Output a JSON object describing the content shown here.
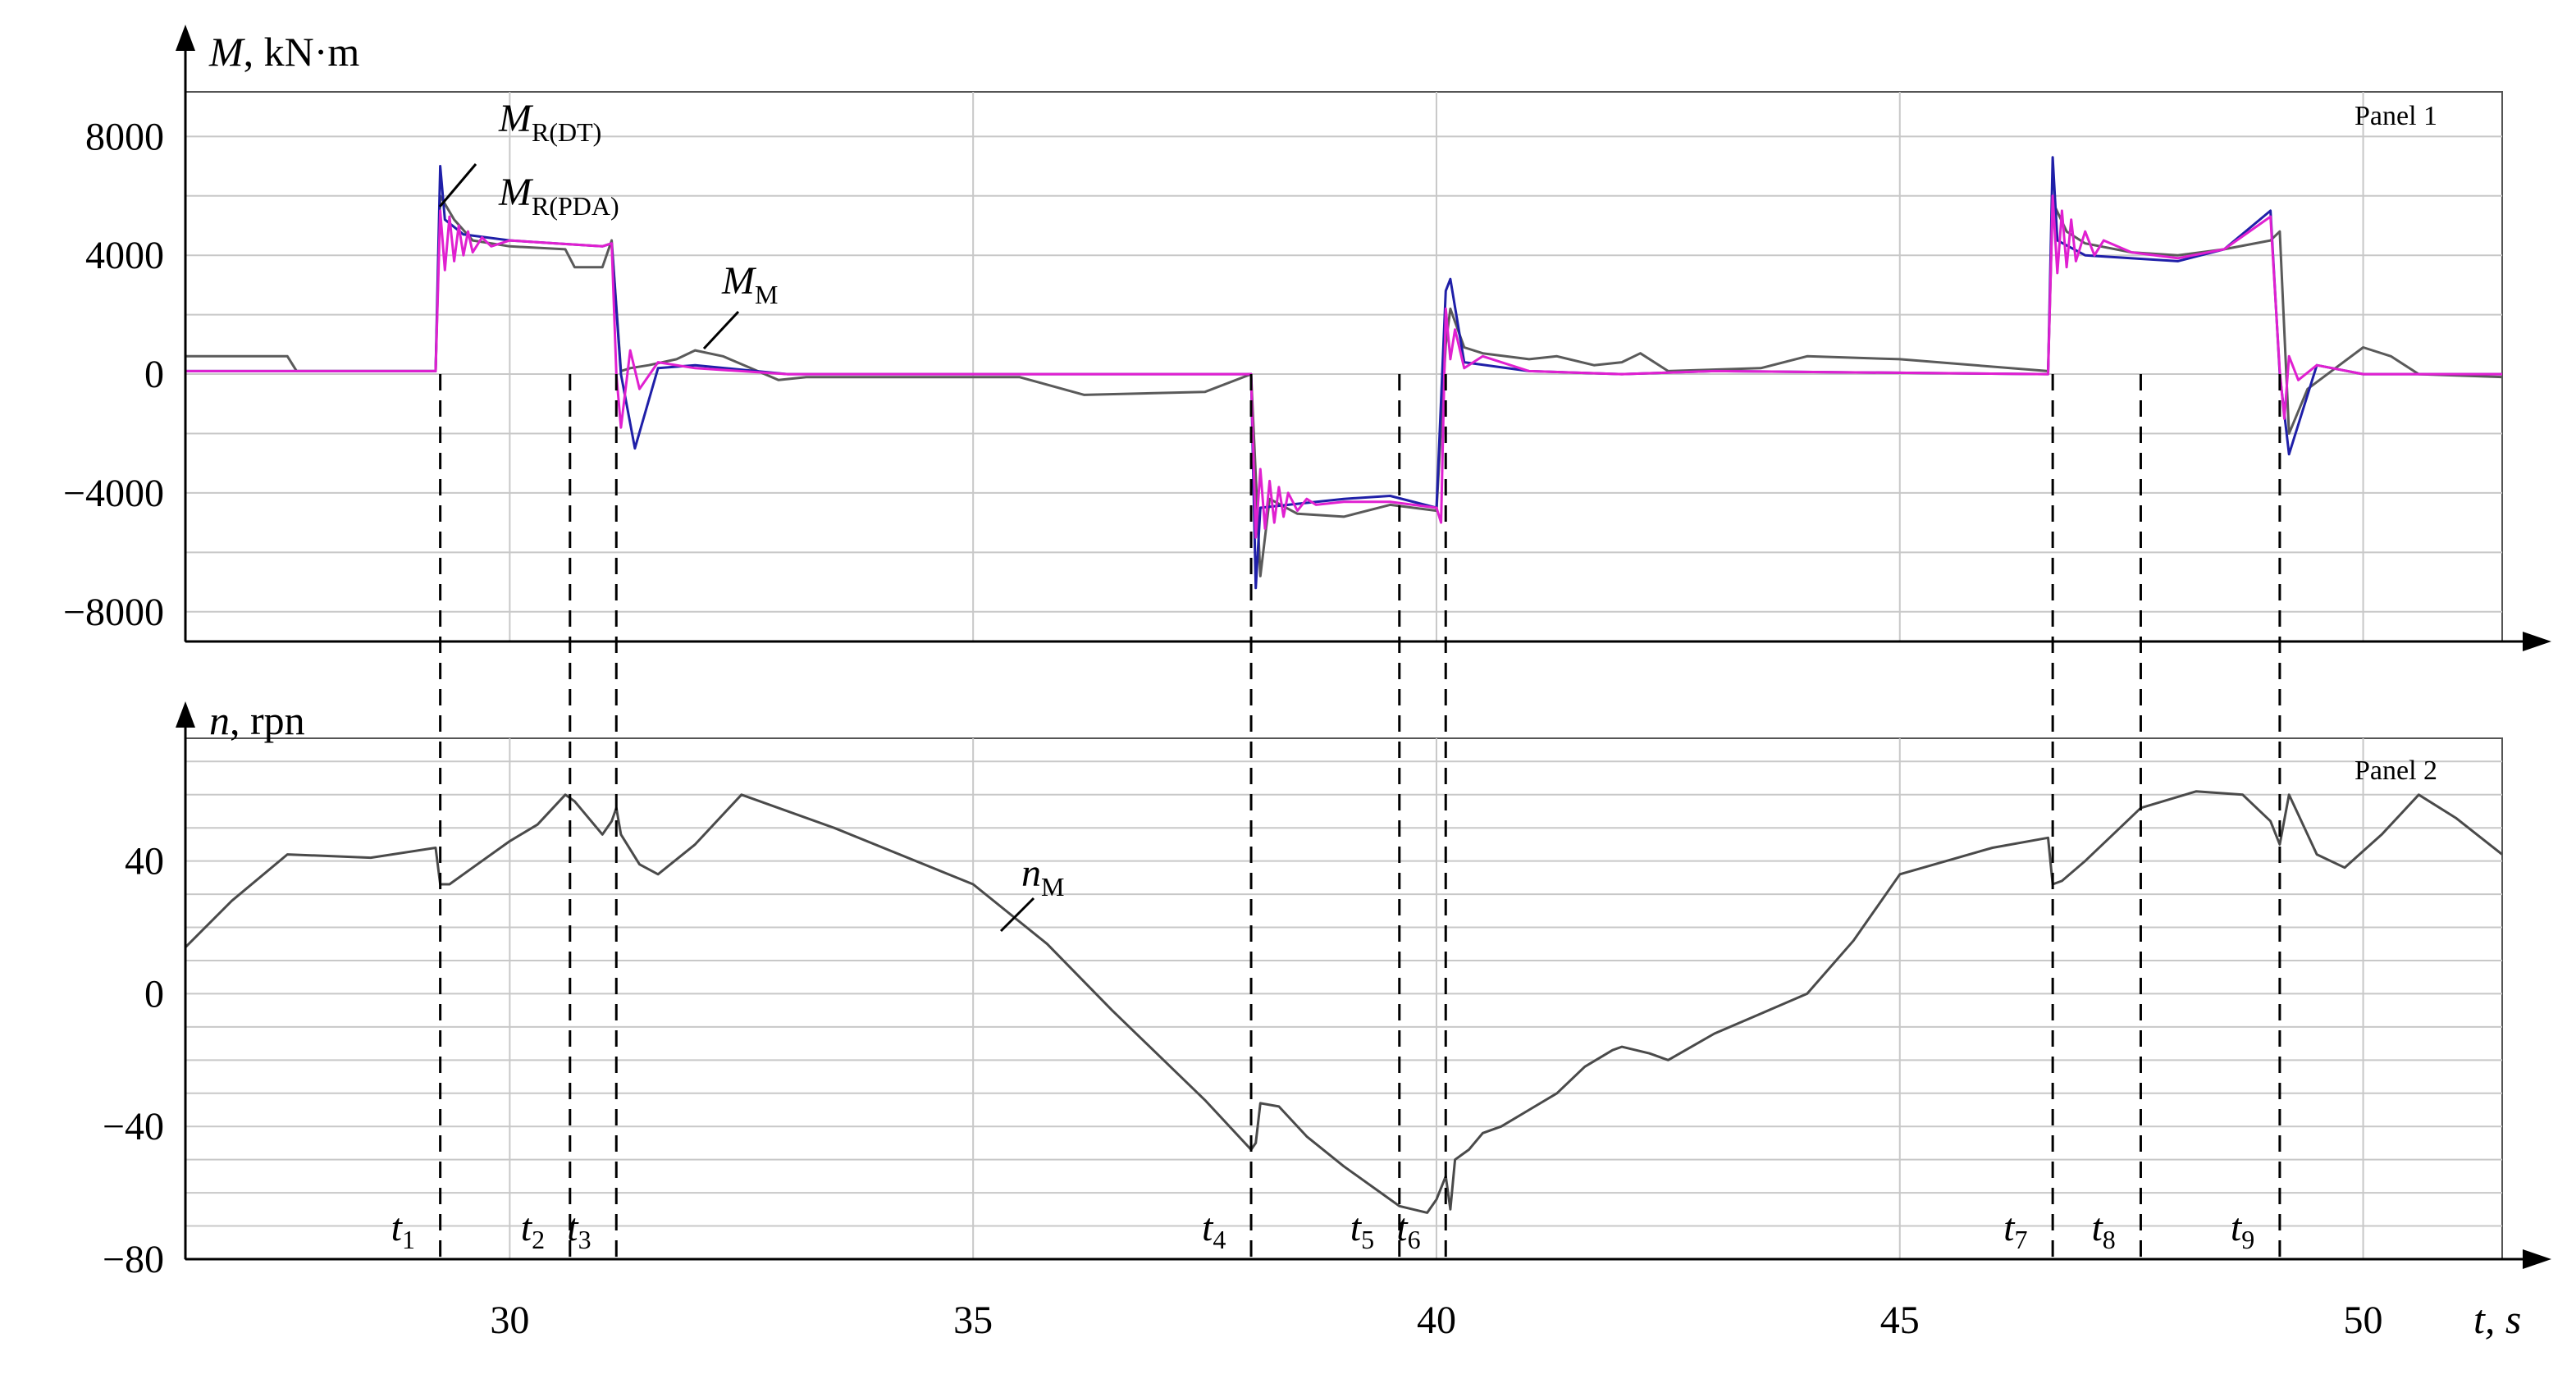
{
  "chart_data": [
    {
      "type": "line",
      "panel_label": "Panel 1",
      "ylabel_italic": "M",
      "ylabel_unit": ", kN·m",
      "xlim": [
        26.5,
        51.5
      ],
      "ylim": [
        -9000,
        9500
      ],
      "yticks": [
        "8000",
        "4000",
        "0",
        "−4000",
        "−8000"
      ],
      "ytick_values": [
        8000,
        4000,
        0,
        -4000,
        -8000
      ],
      "grid": true,
      "annotations": [
        {
          "main": "M",
          "sub": "R(DT)"
        },
        {
          "main": "M",
          "sub": "R(PDA)"
        },
        {
          "main": "M",
          "sub": "M"
        }
      ],
      "series": [
        {
          "color": "#5a5a5a",
          "x": [
            26.5,
            27.6,
            27.7,
            29.2,
            29.25,
            29.4,
            29.6,
            30.0,
            30.6,
            30.7,
            31.0,
            31.1,
            31.2,
            31.3,
            31.5,
            31.8,
            32.0,
            32.3,
            32.6,
            32.9,
            33.2,
            35.5,
            36.2,
            37.5,
            38.0,
            38.1,
            38.2,
            38.5,
            39.0,
            39.5,
            40.0,
            40.1,
            40.15,
            40.3,
            40.5,
            41.0,
            41.3,
            41.7,
            42.0,
            42.2,
            42.5,
            43.5,
            44.0,
            45.0,
            46.6,
            46.65,
            46.8,
            47.0,
            47.5,
            48.0,
            48.5,
            49.0,
            49.1,
            49.2,
            49.4,
            49.7,
            50.0,
            50.3,
            50.6,
            51.5
          ],
          "y": [
            600,
            600,
            100,
            100,
            6000,
            5200,
            4500,
            4300,
            4200,
            3600,
            3600,
            4500,
            100,
            200,
            300,
            500,
            800,
            600,
            200,
            -200,
            -100,
            -100,
            -700,
            -600,
            0,
            -6800,
            -4200,
            -4700,
            -4800,
            -4400,
            -4600,
            1000,
            2200,
            900,
            700,
            500,
            600,
            300,
            400,
            700,
            100,
            200,
            600,
            500,
            100,
            5800,
            4800,
            4400,
            4100,
            4000,
            4200,
            4500,
            4800,
            -2000,
            -500,
            200,
            900,
            600,
            0,
            -100
          ]
        },
        {
          "color": "#1f1fa8",
          "x": [
            26.5,
            29.2,
            29.25,
            29.3,
            29.5,
            30.0,
            30.5,
            31.0,
            31.1,
            31.2,
            31.35,
            31.6,
            32.0,
            33.0,
            38.0,
            38.05,
            38.1,
            38.4,
            39.0,
            39.5,
            40.0,
            40.1,
            40.15,
            40.3,
            41.0,
            42.0,
            43.0,
            46.6,
            46.65,
            46.7,
            47.0,
            48.0,
            48.5,
            49.0,
            49.1,
            49.2,
            49.5,
            50.0,
            51.5
          ],
          "y": [
            100,
            100,
            7000,
            5200,
            4700,
            4500,
            4400,
            4300,
            4400,
            0,
            -2500,
            200,
            300,
            0,
            0,
            -7200,
            -4500,
            -4400,
            -4200,
            -4100,
            -4500,
            2800,
            3200,
            400,
            100,
            0,
            100,
            0,
            7300,
            4500,
            4000,
            3800,
            4200,
            5500,
            0,
            -2700,
            300,
            0,
            0
          ]
        },
        {
          "color": "#e020d0",
          "x": [
            26.5,
            29.2,
            29.25,
            29.3,
            29.35,
            29.4,
            29.45,
            29.5,
            29.55,
            29.6,
            29.7,
            29.8,
            30.0,
            30.5,
            31.0,
            31.1,
            31.15,
            31.2,
            31.3,
            31.4,
            31.6,
            32.0,
            33.0,
            38.0,
            38.05,
            38.1,
            38.15,
            38.2,
            38.25,
            38.3,
            38.35,
            38.4,
            38.5,
            38.6,
            38.7,
            39.0,
            39.5,
            40.0,
            40.05,
            40.1,
            40.15,
            40.2,
            40.3,
            40.5,
            41.0,
            42.0,
            43.0,
            46.6,
            46.65,
            46.7,
            46.75,
            46.8,
            46.85,
            46.9,
            47.0,
            47.1,
            47.2,
            47.5,
            48.0,
            48.5,
            49.0,
            49.1,
            49.15,
            49.2,
            49.3,
            49.5,
            50.0,
            51.5
          ],
          "y": [
            100,
            100,
            5500,
            3500,
            5300,
            3800,
            5000,
            4000,
            4800,
            4100,
            4600,
            4300,
            4500,
            4400,
            4300,
            4400,
            0,
            -1800,
            800,
            -500,
            400,
            200,
            0,
            0,
            -5500,
            -3200,
            -5200,
            -3600,
            -5000,
            -3800,
            -4800,
            -4000,
            -4600,
            -4200,
            -4400,
            -4300,
            -4300,
            -4500,
            -5000,
            2200,
            500,
            1500,
            200,
            600,
            100,
            0,
            100,
            0,
            6000,
            3400,
            5500,
            3600,
            5200,
            3800,
            4800,
            4000,
            4500,
            4100,
            3900,
            4200,
            5300,
            100,
            -1500,
            600,
            -200,
            300,
            0,
            0
          ]
        }
      ]
    },
    {
      "type": "line",
      "panel_label": "Panel 2",
      "ylabel_italic": "n",
      "ylabel_unit": ", rpn",
      "xlabel_italic": "t",
      "xlabel_unit": ", s",
      "xlim": [
        26.5,
        51.5
      ],
      "ylim": [
        -80,
        77
      ],
      "xticks": [
        "30",
        "35",
        "40",
        "45",
        "50"
      ],
      "xtick_values": [
        30,
        35,
        40,
        45,
        50
      ],
      "yticks": [
        "40",
        "0",
        "−40",
        "−80"
      ],
      "ytick_values": [
        40,
        0,
        -40,
        -80
      ],
      "grid": true,
      "annotations": [
        {
          "main": "n",
          "sub": "M"
        }
      ],
      "series": [
        {
          "color": "#4a4a4a",
          "x": [
            26.5,
            27.0,
            27.6,
            28.5,
            29.2,
            29.25,
            29.35,
            29.6,
            30.0,
            30.3,
            30.6,
            30.7,
            31.0,
            31.1,
            31.15,
            31.2,
            31.4,
            31.6,
            32.0,
            32.5,
            33.5,
            35.0,
            35.8,
            36.5,
            37.5,
            38.0,
            38.05,
            38.1,
            38.3,
            38.6,
            39.0,
            39.4,
            39.6,
            39.9,
            40.0,
            40.1,
            40.15,
            40.2,
            40.35,
            40.5,
            40.7,
            41.0,
            41.3,
            41.6,
            41.9,
            42.0,
            42.3,
            42.5,
            43.0,
            43.5,
            44.0,
            44.5,
            45.0,
            46.0,
            46.6,
            46.65,
            46.75,
            47.0,
            47.3,
            47.6,
            48.2,
            48.7,
            49.0,
            49.1,
            49.2,
            49.3,
            49.5,
            49.8,
            50.2,
            50.6,
            51.0,
            51.5
          ],
          "y": [
            14,
            28,
            42,
            41,
            44,
            33,
            33,
            38,
            46,
            51,
            60,
            58,
            48,
            52,
            56,
            48,
            39,
            36,
            45,
            60,
            50,
            33,
            15,
            -5,
            -32,
            -47,
            -45,
            -33,
            -34,
            -43,
            -52,
            -60,
            -64,
            -66,
            -62,
            -55,
            -65,
            -50,
            -47,
            -42,
            -40,
            -35,
            -30,
            -22,
            -17,
            -16,
            -18,
            -20,
            -12,
            -6,
            0,
            16,
            36,
            44,
            47,
            33,
            34,
            40,
            48,
            56,
            61,
            60,
            52,
            45,
            60,
            54,
            42,
            38,
            48,
            60,
            53,
            42
          ]
        }
      ]
    }
  ],
  "event_markers": [
    {
      "x": 29.25,
      "main": "t",
      "sub": "1"
    },
    {
      "x": 30.65,
      "main": "t",
      "sub": "2"
    },
    {
      "x": 31.15,
      "main": "t",
      "sub": "3"
    },
    {
      "x": 38.0,
      "main": "t",
      "sub": "4"
    },
    {
      "x": 39.6,
      "main": "t",
      "sub": "5"
    },
    {
      "x": 40.1,
      "main": "t",
      "sub": "6"
    },
    {
      "x": 46.65,
      "main": "t",
      "sub": "7"
    },
    {
      "x": 47.6,
      "main": "t",
      "sub": "8"
    },
    {
      "x": 49.1,
      "main": "t",
      "sub": "9"
    }
  ]
}
